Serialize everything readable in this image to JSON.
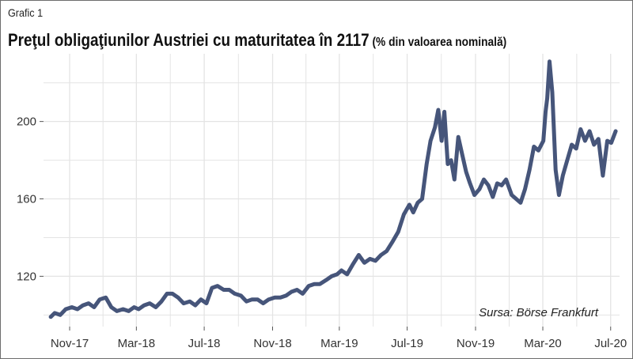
{
  "header": {
    "label": "Grafic 1",
    "title": "Preţul obligaţiunilor Austriei cu maturitatea în 2117",
    "unit": "(% din valoarea nominală)"
  },
  "source": "Sursa: Börse Frankfurt",
  "colors": {
    "line": "#46557a",
    "grid": "#e4e4e4",
    "background": "#ffffff"
  },
  "chart_data": {
    "type": "line",
    "title": "Preţul obligaţiunilor Austriei cu maturitatea în 2117",
    "ylabel": "",
    "xlabel": "",
    "x_range": [
      "2017-09-15",
      "2020-07-17"
    ],
    "ylim": [
      94,
      235
    ],
    "grid": true,
    "xticks": [
      {
        "date": "2017-11-01",
        "label": "Nov-17"
      },
      {
        "date": "2018-03-01",
        "label": "Mar-18"
      },
      {
        "date": "2018-07-01",
        "label": "Jul-18"
      },
      {
        "date": "2018-11-01",
        "label": "Nov-18"
      },
      {
        "date": "2019-03-01",
        "label": "Mar-19"
      },
      {
        "date": "2019-07-01",
        "label": "Jul-19"
      },
      {
        "date": "2019-11-01",
        "label": "Nov-19"
      },
      {
        "date": "2020-03-01",
        "label": "Mar-20"
      },
      {
        "date": "2020-07-01",
        "label": "Jul-20"
      }
    ],
    "yticks": [
      120,
      160,
      200
    ],
    "series": [
      {
        "x": [
          "2017-09-28",
          "2017-10-05",
          "2017-10-15",
          "2017-10-25",
          "2017-11-05",
          "2017-11-15",
          "2017-11-25",
          "2017-12-05",
          "2017-12-15",
          "2017-12-25",
          "2018-01-05",
          "2018-01-15",
          "2018-01-25",
          "2018-02-05",
          "2018-02-15",
          "2018-02-25",
          "2018-03-05",
          "2018-03-15",
          "2018-03-25",
          "2018-04-05",
          "2018-04-15",
          "2018-04-25",
          "2018-05-05",
          "2018-05-15",
          "2018-05-25",
          "2018-06-05",
          "2018-06-15",
          "2018-06-25",
          "2018-07-05",
          "2018-07-15",
          "2018-07-25",
          "2018-08-05",
          "2018-08-15",
          "2018-08-25",
          "2018-09-05",
          "2018-09-15",
          "2018-09-25",
          "2018-10-05",
          "2018-10-15",
          "2018-10-25",
          "2018-11-05",
          "2018-11-15",
          "2018-11-25",
          "2018-12-05",
          "2018-12-15",
          "2018-12-25",
          "2019-01-05",
          "2019-01-15",
          "2019-01-25",
          "2019-02-05",
          "2019-02-15",
          "2019-02-25",
          "2019-03-05",
          "2019-03-15",
          "2019-03-25",
          "2019-04-05",
          "2019-04-15",
          "2019-04-25",
          "2019-05-05",
          "2019-05-15",
          "2019-05-25",
          "2019-06-05",
          "2019-06-15",
          "2019-06-25",
          "2019-07-05",
          "2019-07-12",
          "2019-07-20",
          "2019-07-28",
          "2019-08-05",
          "2019-08-12",
          "2019-08-20",
          "2019-08-26",
          "2019-09-01",
          "2019-09-06",
          "2019-09-12",
          "2019-09-18",
          "2019-09-24",
          "2019-10-01",
          "2019-10-08",
          "2019-10-15",
          "2019-10-22",
          "2019-10-30",
          "2019-11-08",
          "2019-11-16",
          "2019-11-24",
          "2019-12-02",
          "2019-12-10",
          "2019-12-18",
          "2019-12-26",
          "2020-01-05",
          "2020-01-13",
          "2020-01-21",
          "2020-01-29",
          "2020-02-06",
          "2020-02-14",
          "2020-02-22",
          "2020-03-02",
          "2020-03-06",
          "2020-03-09",
          "2020-03-13",
          "2020-03-18",
          "2020-03-24",
          "2020-03-30",
          "2020-04-06",
          "2020-04-14",
          "2020-04-22",
          "2020-04-30",
          "2020-05-08",
          "2020-05-16",
          "2020-05-24",
          "2020-06-01",
          "2020-06-09",
          "2020-06-17",
          "2020-06-25",
          "2020-07-02",
          "2020-07-10"
        ],
        "y": [
          99,
          101,
          100,
          103,
          104,
          103,
          105,
          106,
          104,
          108,
          109,
          104,
          102,
          103,
          102,
          104,
          103,
          105,
          106,
          104,
          107,
          111,
          111,
          109,
          106,
          107,
          105,
          108,
          106,
          114,
          115,
          113,
          113,
          111,
          110,
          107,
          108,
          108,
          106,
          108,
          109,
          109,
          110,
          112,
          113,
          111,
          115,
          116,
          116,
          118,
          120,
          121,
          123,
          121,
          126,
          131,
          127,
          129,
          128,
          131,
          133,
          138,
          143,
          152,
          157,
          153,
          158,
          160,
          178,
          190,
          197,
          206,
          190,
          205,
          178,
          180,
          170,
          192,
          183,
          174,
          168,
          162,
          165,
          170,
          167,
          161,
          168,
          167,
          170,
          162,
          160,
          158,
          165,
          175,
          187,
          185,
          190,
          205,
          212,
          231,
          215,
          175,
          162,
          172,
          180,
          188,
          186,
          196,
          190,
          195,
          188,
          191,
          172,
          190,
          189,
          195
        ]
      }
    ]
  }
}
